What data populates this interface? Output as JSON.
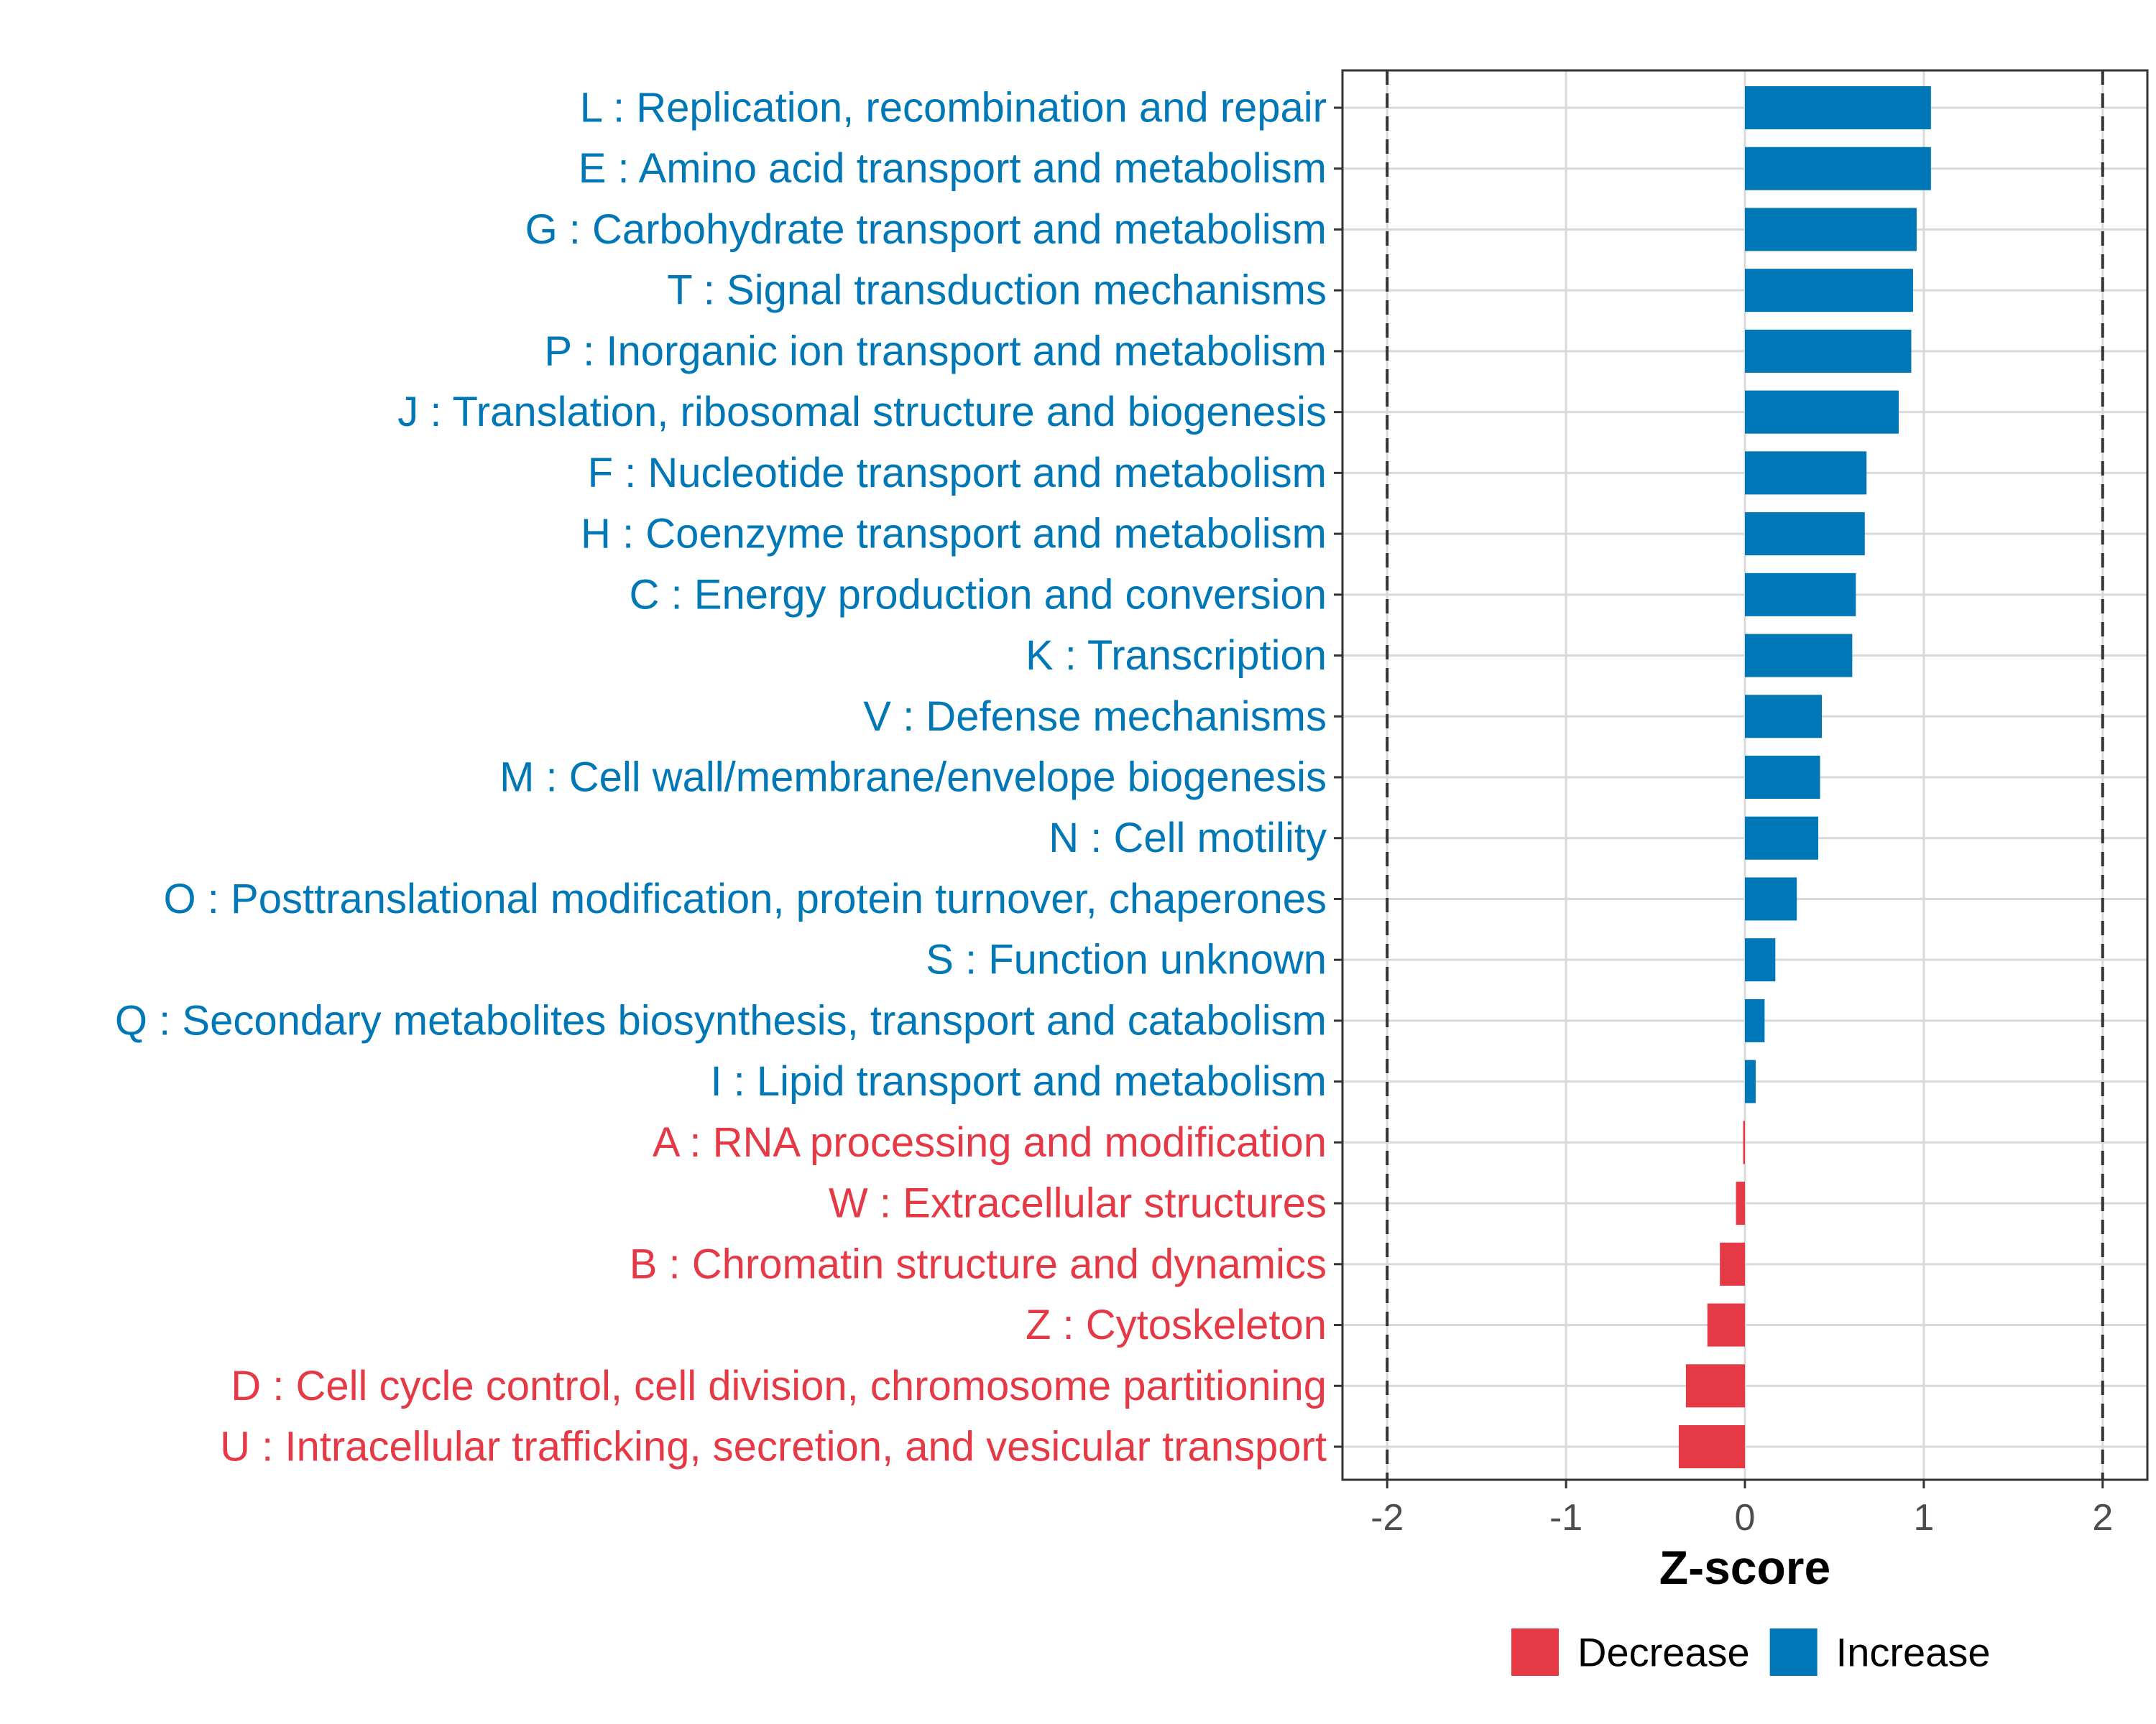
{
  "chart_data": {
    "type": "bar",
    "orientation": "horizontal",
    "xlabel": "Z-score",
    "xlim": [
      -2.25,
      2.25
    ],
    "xticks": [
      -2,
      -1,
      0,
      1,
      2
    ],
    "xtick_labels": [
      "-2",
      "-1",
      "0",
      "1",
      "2"
    ],
    "reference_lines": [
      -2,
      2
    ],
    "grid": true,
    "legend_position": "bottom",
    "colors": {
      "Decrease": "#e63946",
      "Increase": "#0077b6"
    },
    "legend": [
      {
        "label": "Decrease",
        "group": "Decrease"
      },
      {
        "label": "Increase",
        "group": "Increase"
      }
    ],
    "bars": [
      {
        "label": "L : Replication, recombination and repair",
        "value": 1.04,
        "group": "Increase"
      },
      {
        "label": "E : Amino acid transport and metabolism",
        "value": 1.04,
        "group": "Increase"
      },
      {
        "label": "G : Carbohydrate transport and metabolism",
        "value": 0.96,
        "group": "Increase"
      },
      {
        "label": "T : Signal transduction mechanisms",
        "value": 0.94,
        "group": "Increase"
      },
      {
        "label": "P : Inorganic ion transport and metabolism",
        "value": 0.93,
        "group": "Increase"
      },
      {
        "label": "J : Translation, ribosomal structure and biogenesis",
        "value": 0.86,
        "group": "Increase"
      },
      {
        "label": "F : Nucleotide transport and metabolism",
        "value": 0.68,
        "group": "Increase"
      },
      {
        "label": "H : Coenzyme transport and metabolism",
        "value": 0.67,
        "group": "Increase"
      },
      {
        "label": "C : Energy production and conversion",
        "value": 0.62,
        "group": "Increase"
      },
      {
        "label": "K : Transcription",
        "value": 0.6,
        "group": "Increase"
      },
      {
        "label": "V : Defense mechanisms",
        "value": 0.43,
        "group": "Increase"
      },
      {
        "label": "M : Cell wall/membrane/envelope biogenesis",
        "value": 0.42,
        "group": "Increase"
      },
      {
        "label": "N : Cell motility",
        "value": 0.41,
        "group": "Increase"
      },
      {
        "label": "O : Posttranslational modification, protein turnover, chaperones",
        "value": 0.29,
        "group": "Increase"
      },
      {
        "label": "S : Function unknown",
        "value": 0.17,
        "group": "Increase"
      },
      {
        "label": "Q : Secondary metabolites biosynthesis, transport and catabolism",
        "value": 0.11,
        "group": "Increase"
      },
      {
        "label": "I : Lipid transport and metabolism",
        "value": 0.06,
        "group": "Increase"
      },
      {
        "label": "A : RNA processing and modification",
        "value": -0.01,
        "group": "Decrease"
      },
      {
        "label": "W : Extracellular structures",
        "value": -0.05,
        "group": "Decrease"
      },
      {
        "label": "B : Chromatin structure and dynamics",
        "value": -0.14,
        "group": "Decrease"
      },
      {
        "label": "Z : Cytoskeleton",
        "value": -0.21,
        "group": "Decrease"
      },
      {
        "label": "D : Cell cycle control, cell division, chromosome partitioning",
        "value": -0.33,
        "group": "Decrease"
      },
      {
        "label": "U : Intracellular trafficking, secretion, and vesicular transport",
        "value": -0.37,
        "group": "Decrease"
      }
    ]
  }
}
